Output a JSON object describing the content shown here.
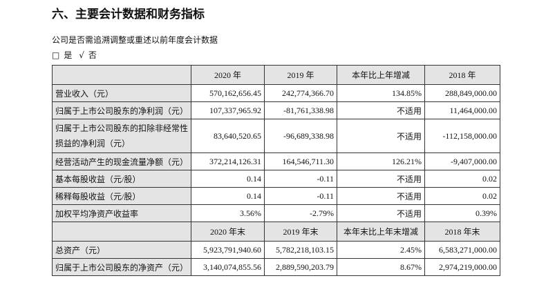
{
  "title": "六、主要会计数据和财务指标",
  "question": "公司是否需追溯调整或重述以前年度会计数据",
  "options": [
    {
      "box": "□",
      "label": "是"
    },
    {
      "box": "√",
      "label": "否"
    }
  ],
  "header1": [
    "",
    "2020 年",
    "2019 年",
    "本年比上年增减",
    "2018 年"
  ],
  "rows1": [
    [
      "营业收入（元）",
      "570,162,656.45",
      "242,774,366.70",
      "134.85%",
      "288,849,000.00"
    ],
    [
      "归属于上市公司股东的净利润（元）",
      "107,337,965.92",
      "-81,761,338.98",
      "不适用",
      "11,464,000.00"
    ],
    [
      "归属于上市公司股东的扣除非经常性损益的净利润（元）",
      "83,640,520.65",
      "-96,689,338.98",
      "不适用",
      "-112,158,000.00"
    ],
    [
      "经营活动产生的现金流量净额（元）",
      "372,214,126.31",
      "164,546,711.30",
      "126.21%",
      "-9,407,000.00"
    ],
    [
      "基本每股收益（元/股）",
      "0.14",
      "-0.11",
      "不适用",
      "0.02"
    ],
    [
      "稀释每股收益（元/股）",
      "0.14",
      "-0.11",
      "不适用",
      "0.02"
    ],
    [
      "加权平均净资产收益率",
      "3.56%",
      "-2.79%",
      "不适用",
      "0.39%"
    ]
  ],
  "header2": [
    "",
    "2020 年末",
    "2019 年末",
    "本年末比上年末增减",
    "2018 年末"
  ],
  "rows2": [
    [
      "总资产（元）",
      "5,923,791,940.60",
      "5,782,218,103.15",
      "2.45%",
      "6,583,271,000.00"
    ],
    [
      "归属于上市公司股东的净资产（元）",
      "3,140,074,855.56",
      "2,889,590,203.79",
      "8.67%",
      "2,974,219,000.00"
    ]
  ]
}
